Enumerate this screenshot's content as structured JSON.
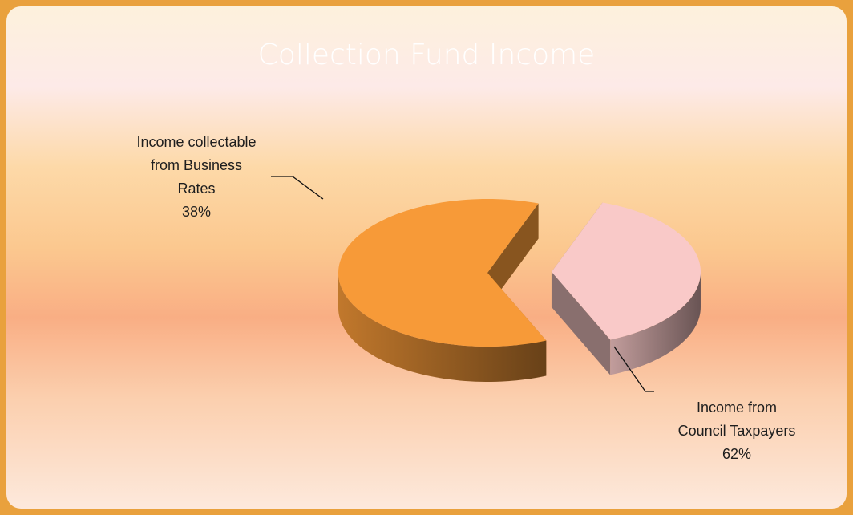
{
  "chart_data": {
    "type": "pie",
    "title": "Collection Fund Income",
    "categories": [
      "Income collectable from Business Rates",
      "Income from Council Taxpayers"
    ],
    "values": [
      38,
      62
    ],
    "value_labels": [
      "38%",
      "62%"
    ],
    "colors": [
      "#f9c9c8",
      "#f79a38"
    ],
    "style": "3d"
  }
}
